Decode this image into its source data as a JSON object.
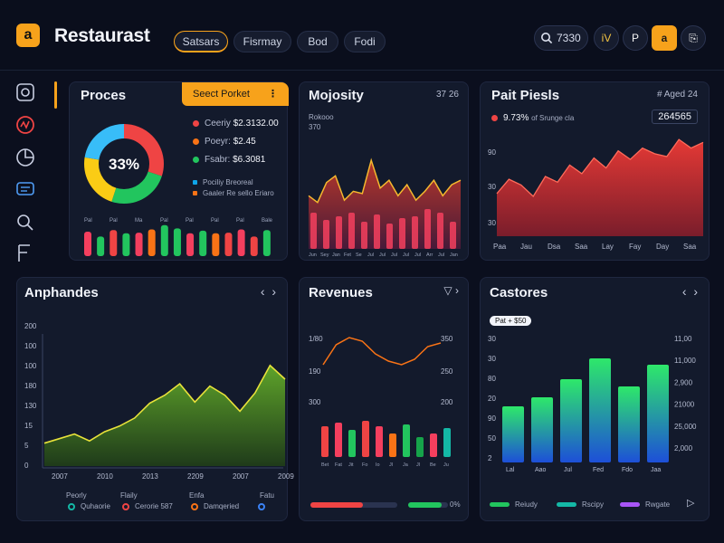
{
  "app": {
    "logo_glyph": "a",
    "title": "Restaurast"
  },
  "nav": {
    "tabs": [
      "Satsars",
      "Fisrmay",
      "Bod",
      "Fodi"
    ]
  },
  "header": {
    "search_value": "7330",
    "btn_iv": "iV",
    "btn_p": "P",
    "btn_a": "a",
    "btn_exit": "⎘"
  },
  "proces": {
    "title": "Proces",
    "select_label": "Seect Porket",
    "select_dots": "⋮",
    "donut_label": "33%",
    "legend": [
      {
        "label": "Ceeriy",
        "value": "$2.3132.00",
        "color": "#ef4444"
      },
      {
        "label": "Poeyr:",
        "value": "$2.45",
        "color": "#f97316"
      },
      {
        "label": "Fsabr:",
        "value": "$6.3081",
        "color": "#22c55e"
      }
    ],
    "notes": [
      {
        "label": "Pociliy",
        "value": "Breoreal",
        "color": "#0ea5e9"
      },
      {
        "label": "Gaaler",
        "value": "Re sello Eriaro",
        "color": "#f97316"
      }
    ],
    "bar_labels": [
      "Pal",
      "Pal",
      "Ma",
      "Pal",
      "Pal",
      "Pal",
      "Pal",
      "Bale"
    ],
    "bars": [
      0.75,
      0.6,
      0.8,
      0.7,
      0.72,
      0.82,
      0.95,
      0.85,
      0.7,
      0.78,
      0.7,
      0.72,
      0.82,
      0.6,
      0.8
    ]
  },
  "majority": {
    "title": "Mojosity",
    "meta": "37 26",
    "ylabels": [
      "Rokooo",
      "370"
    ],
    "area": [
      48,
      42,
      60,
      66,
      44,
      52,
      50,
      80,
      55,
      62,
      48,
      58,
      44,
      52,
      62,
      48,
      58,
      62
    ],
    "bars": [
      40,
      32,
      36,
      40,
      30,
      38,
      28,
      34,
      36,
      44,
      40,
      30
    ],
    "xlabels": [
      "Jun",
      "Sey",
      "Jan",
      "Fet",
      "Se",
      "Jul",
      "Jul",
      "Jul",
      "Jul",
      "Jul",
      "Arr",
      "Jul",
      "Jan"
    ]
  },
  "pait": {
    "title": "Pait Piesls",
    "meta": "# Aged 24",
    "pct": "9.73%",
    "pct_sub": "of Srunge cla",
    "value": "264565",
    "ylabels": [
      "90",
      "30",
      "30"
    ],
    "area": [
      30,
      40,
      36,
      28,
      42,
      38,
      50,
      44,
      55,
      48,
      60,
      54,
      62,
      58,
      56,
      68,
      62,
      66
    ],
    "xlabels": [
      "Paa",
      "Jau",
      "Dsa",
      "Saa",
      "Lay",
      "Fay",
      "Day",
      "Saa"
    ]
  },
  "anphandes": {
    "title": "Anphandes",
    "ylabels": [
      "200",
      "100",
      "100",
      "180",
      "130",
      "15",
      "5",
      "0"
    ],
    "xlabels": [
      "2007",
      "2010",
      "2013",
      "2209",
      "2007",
      "2009"
    ],
    "area": [
      20,
      24,
      28,
      22,
      30,
      35,
      42,
      55,
      62,
      72,
      56,
      70,
      62,
      48,
      64,
      88,
      76
    ],
    "legend": [
      {
        "head": "Peorly",
        "label": "Quhaorie",
        "color": "#14b8a6"
      },
      {
        "head": "Flaily",
        "label": "Cerorie 587",
        "color": "#ef4444"
      },
      {
        "head": "Enfa",
        "label": "Damqeried",
        "color": "#f97316"
      },
      {
        "head": "Fatu",
        "label": "",
        "color": "#3b82f6"
      }
    ]
  },
  "revenues": {
    "title": "Revenues",
    "left_labels": [
      "1/80",
      "190",
      "300"
    ],
    "right_labels": [
      "350",
      "250",
      "200"
    ],
    "line": [
      40,
      62,
      70,
      66,
      52,
      44,
      40,
      46,
      60,
      64
    ],
    "bars": [
      34,
      38,
      30,
      40,
      34,
      26,
      36,
      22,
      26,
      32
    ],
    "bar_colors": [
      "#ef4444",
      "#f43f5e",
      "#22c55e",
      "#ef4444",
      "#f43f5e",
      "#f97316",
      "#22c55e",
      "#16a34a",
      "#f43f5e",
      "#14b8a6"
    ],
    "xlabels": [
      "Bet",
      "Fat",
      "Jit",
      "Fo",
      "Io",
      "Jl",
      "Ja",
      "Jl",
      "Be",
      "Ju"
    ],
    "progress": [
      {
        "value": 0.6,
        "color": "#ef4444"
      },
      {
        "value": 0.85,
        "color": "#22c55e"
      }
    ],
    "progress_label": "0%"
  },
  "castores": {
    "title": "Castores",
    "tag": "Pat + $50",
    "left_labels": [
      "30",
      "30",
      "80",
      "20",
      "90",
      "50",
      "2"
    ],
    "right_labels": [
      "11,00",
      "11,000",
      "2,900",
      "21000",
      "25,000",
      "2,000"
    ],
    "bars": [
      62,
      72,
      92,
      115,
      84,
      108
    ],
    "xlabels": [
      "Lal",
      "Aao",
      "Jul",
      "Fed",
      "Fdo",
      "Jaa"
    ],
    "legend": [
      {
        "label": "Reiudy",
        "color": "#22c55e"
      },
      {
        "label": "Rscipy",
        "color": "#14b8a6"
      },
      {
        "label": "Rwgate",
        "color": "#a855f7"
      }
    ],
    "next_glyph": "▷"
  }
}
